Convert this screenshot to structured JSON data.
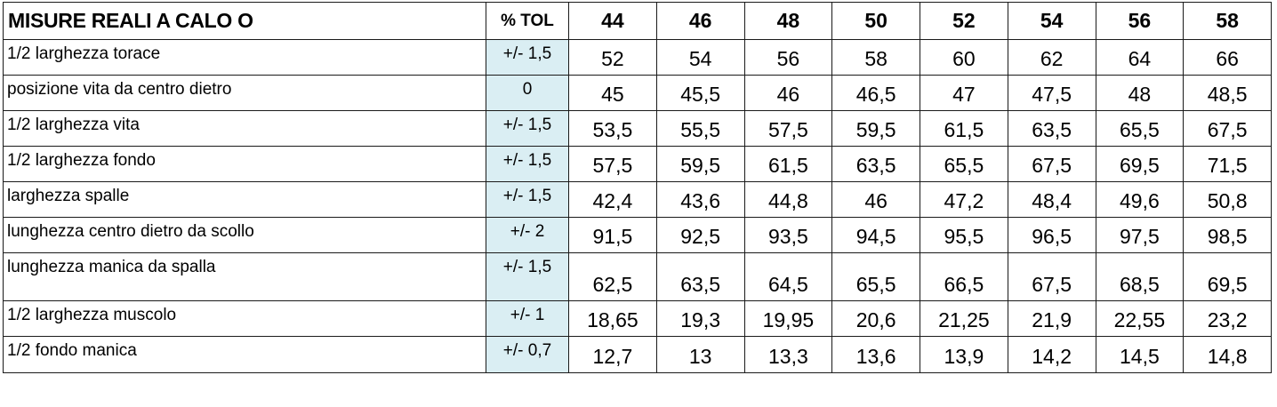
{
  "table": {
    "title": "MISURE REALI A CALO O",
    "tol_header": "% TOL",
    "sizes": [
      "44",
      "46",
      "48",
      "50",
      "52",
      "54",
      "56",
      "58"
    ],
    "rows": [
      {
        "label": "1/2 larghezza torace",
        "tol": "+/- 1,5",
        "values": [
          "52",
          "54",
          "56",
          "58",
          "60",
          "62",
          "64",
          "66"
        ]
      },
      {
        "label": "posizione vita da centro dietro",
        "tol": "0",
        "values": [
          "45",
          "45,5",
          "46",
          "46,5",
          "47",
          "47,5",
          "48",
          "48,5"
        ]
      },
      {
        "label": "1/2 larghezza vita",
        "tol": "+/- 1,5",
        "values": [
          "53,5",
          "55,5",
          "57,5",
          "59,5",
          "61,5",
          "63,5",
          "65,5",
          "67,5"
        ]
      },
      {
        "label": "1/2 larghezza fondo",
        "tol": "+/- 1,5",
        "values": [
          "57,5",
          "59,5",
          "61,5",
          "63,5",
          "65,5",
          "67,5",
          "69,5",
          "71,5"
        ]
      },
      {
        "label": "larghezza spalle",
        "tol": "+/- 1,5",
        "values": [
          "42,4",
          "43,6",
          "44,8",
          "46",
          "47,2",
          "48,4",
          "49,6",
          "50,8"
        ]
      },
      {
        "label": "lunghezza centro dietro da scollo",
        "tol": "+/- 2",
        "values": [
          "91,5",
          "92,5",
          "93,5",
          "94,5",
          "95,5",
          "96,5",
          "97,5",
          "98,5"
        ]
      },
      {
        "label": "lunghezza manica da spalla",
        "tol": "+/- 1,5",
        "values": [
          "62,5",
          "63,5",
          "64,5",
          "65,5",
          "66,5",
          "67,5",
          "68,5",
          "69,5"
        ]
      },
      {
        "label": "1/2 larghezza muscolo",
        "tol": "+/- 1",
        "values": [
          "18,65",
          "19,3",
          "19,95",
          "20,6",
          "21,25",
          "21,9",
          "22,55",
          "23,2"
        ]
      },
      {
        "label": "1/2 fondo manica",
        "tol": "+/- 0,7",
        "values": [
          "12,7",
          "13",
          "13,3",
          "13,6",
          "13,9",
          "14,2",
          "14,5",
          "14,8"
        ]
      }
    ]
  },
  "colors": {
    "tol_column_fill": "#daeef3",
    "grid_line": "#1a1a1a"
  }
}
